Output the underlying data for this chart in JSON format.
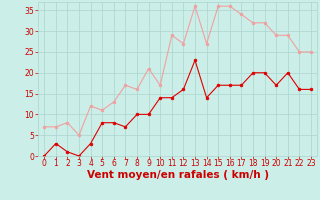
{
  "x": [
    0,
    1,
    2,
    3,
    4,
    5,
    6,
    7,
    8,
    9,
    10,
    11,
    12,
    13,
    14,
    15,
    16,
    17,
    18,
    19,
    20,
    21,
    22,
    23
  ],
  "wind_avg": [
    0,
    3,
    1,
    0,
    3,
    8,
    8,
    7,
    10,
    10,
    14,
    14,
    16,
    23,
    14,
    17,
    17,
    17,
    20,
    20,
    17,
    20,
    16,
    16
  ],
  "wind_gust": [
    7,
    7,
    8,
    5,
    12,
    11,
    13,
    17,
    16,
    21,
    17,
    29,
    27,
    36,
    27,
    36,
    36,
    34,
    32,
    32,
    29,
    29,
    25,
    25
  ],
  "color_avg": "#dd0000",
  "color_gust": "#f0a0a0",
  "bg_color": "#cceee8",
  "grid_color": "#aad4cc",
  "xlabel": "Vent moyen/en rafales ( km/h )",
  "xlabel_color": "#cc0000",
  "ylim": [
    0,
    37
  ],
  "xlim_min": -0.5,
  "xlim_max": 23.5,
  "yticks": [
    0,
    5,
    10,
    15,
    20,
    25,
    30,
    35
  ],
  "xticks": [
    0,
    1,
    2,
    3,
    4,
    5,
    6,
    7,
    8,
    9,
    10,
    11,
    12,
    13,
    14,
    15,
    16,
    17,
    18,
    19,
    20,
    21,
    22,
    23
  ],
  "tick_color": "#cc0000",
  "tick_fontsize": 5.5,
  "xlabel_fontsize": 7.5,
  "linewidth": 0.8,
  "markersize": 2.0
}
